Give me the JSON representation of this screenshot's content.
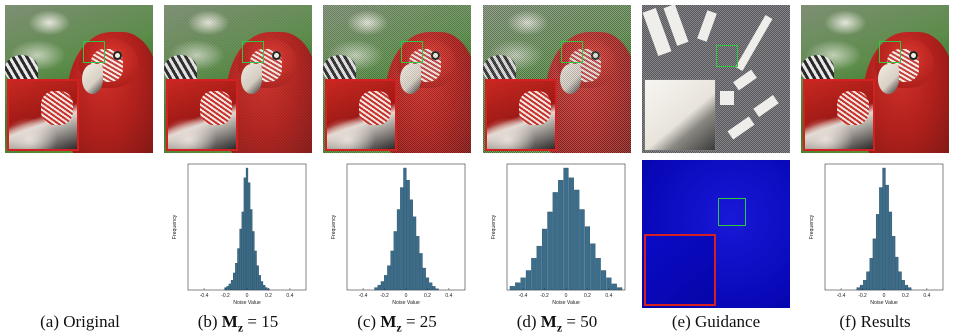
{
  "figure": {
    "captions": [
      {
        "id": "a",
        "text": "(a)  Original"
      },
      {
        "id": "b",
        "text": "(b) ",
        "math_sym": "M",
        "math_sub": "z",
        "math_rest": " = 15"
      },
      {
        "id": "c",
        "text": "(c) ",
        "math_sym": "M",
        "math_sub": "z",
        "math_rest": " = 25"
      },
      {
        "id": "d",
        "text": "(d) ",
        "math_sym": "M",
        "math_sub": "z",
        "math_rest": " = 50"
      },
      {
        "id": "e",
        "text": "(e)  Guidance"
      },
      {
        "id": "f",
        "text": "(f)  Results"
      }
    ],
    "colors": {
      "zoom_frame": "#d42020",
      "roi_frame": "#30c840",
      "hist_bar": "#3b6e8c",
      "guidance_map": "#0808b8"
    }
  },
  "chart_data": [
    {
      "type": "bar",
      "panel": "b",
      "xlabel": "Noise Value",
      "ylabel": "Frequency",
      "xticks": [
        "-0.4",
        "-0.2",
        "0",
        "0.2",
        "0.4"
      ],
      "xlim": [
        -0.55,
        0.55
      ],
      "x": [
        -0.2,
        -0.18,
        -0.16,
        -0.14,
        -0.12,
        -0.1,
        -0.08,
        -0.06,
        -0.04,
        -0.02,
        0,
        0.02,
        0.04,
        0.06,
        0.08,
        0.1,
        0.12,
        0.14,
        0.16,
        0.18,
        0.2
      ],
      "values": [
        0.02,
        0.03,
        0.05,
        0.08,
        0.14,
        0.22,
        0.34,
        0.5,
        0.64,
        0.92,
        1.0,
        0.88,
        0.66,
        0.48,
        0.32,
        0.2,
        0.12,
        0.07,
        0.04,
        0.02,
        0.01
      ]
    },
    {
      "type": "bar",
      "panel": "c",
      "xlabel": "Noise Value",
      "ylabel": "Frequency",
      "xticks": [
        "-0.4",
        "-0.2",
        "0",
        "0.2",
        "0.4"
      ],
      "xlim": [
        -0.55,
        0.55
      ],
      "x": [
        -0.28,
        -0.25,
        -0.22,
        -0.19,
        -0.16,
        -0.13,
        -0.1,
        -0.07,
        -0.04,
        -0.01,
        0.02,
        0.05,
        0.08,
        0.11,
        0.14,
        0.17,
        0.2,
        0.23,
        0.26,
        0.29
      ],
      "values": [
        0.02,
        0.04,
        0.07,
        0.12,
        0.2,
        0.32,
        0.48,
        0.66,
        0.84,
        1.0,
        0.9,
        0.74,
        0.6,
        0.44,
        0.3,
        0.18,
        0.1,
        0.06,
        0.03,
        0.01
      ]
    },
    {
      "type": "bar",
      "panel": "d",
      "xlabel": "Noise Value",
      "ylabel": "Frequency",
      "xticks": [
        "-0.4",
        "-0.2",
        "0",
        "0.2",
        "0.4"
      ],
      "xlim": [
        -0.55,
        0.55
      ],
      "x": [
        -0.5,
        -0.45,
        -0.4,
        -0.35,
        -0.3,
        -0.25,
        -0.2,
        -0.15,
        -0.1,
        -0.05,
        0,
        0.05,
        0.1,
        0.15,
        0.2,
        0.25,
        0.3,
        0.35,
        0.4,
        0.45,
        0.5
      ],
      "values": [
        0.03,
        0.06,
        0.1,
        0.16,
        0.26,
        0.36,
        0.5,
        0.64,
        0.8,
        0.9,
        1.0,
        0.92,
        0.82,
        0.66,
        0.52,
        0.38,
        0.26,
        0.16,
        0.1,
        0.05,
        0.02
      ]
    },
    {
      "type": "bar",
      "panel": "f",
      "xlabel": "Noise Value",
      "ylabel": "Frequency",
      "xticks": [
        "-0.4",
        "-0.2",
        "0",
        "0.2",
        "0.4"
      ],
      "xlim": [
        -0.55,
        0.55
      ],
      "x": [
        -0.24,
        -0.21,
        -0.18,
        -0.15,
        -0.12,
        -0.09,
        -0.06,
        -0.03,
        0,
        0.03,
        0.06,
        0.09,
        0.12,
        0.15,
        0.18,
        0.21,
        0.24
      ],
      "values": [
        0.02,
        0.04,
        0.08,
        0.15,
        0.26,
        0.42,
        0.62,
        0.84,
        1.0,
        0.86,
        0.64,
        0.44,
        0.27,
        0.15,
        0.08,
        0.04,
        0.02
      ]
    }
  ]
}
